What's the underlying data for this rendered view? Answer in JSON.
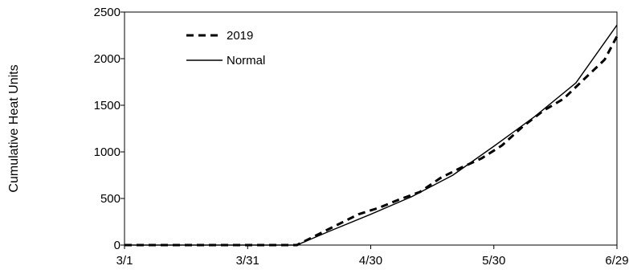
{
  "chart_data": {
    "type": "line",
    "title": "",
    "xlabel": "",
    "ylabel": "Cumulative Heat Units",
    "x_ticks": [
      "3/1",
      "3/31",
      "4/30",
      "5/30",
      "6/29"
    ],
    "xlim": [
      "3/1",
      "6/29"
    ],
    "ylim": [
      0,
      2500
    ],
    "y_ticks": [
      0,
      500,
      1000,
      1500,
      2000,
      2500
    ],
    "grid": false,
    "legend_position": "top-left",
    "series": [
      {
        "name": "2019",
        "style": "dashed",
        "color": "#000000",
        "x": [
          "3/1",
          "3/11",
          "3/21",
          "3/31",
          "4/10",
          "4/12",
          "4/17",
          "4/22",
          "4/27",
          "5/2",
          "5/7",
          "5/12",
          "5/17",
          "5/22",
          "5/27",
          "6/1",
          "6/6",
          "6/11",
          "6/16",
          "6/21",
          "6/26",
          "6/29"
        ],
        "y": [
          0,
          0,
          0,
          0,
          0,
          0,
          110,
          220,
          330,
          400,
          490,
          570,
          720,
          830,
          930,
          1070,
          1270,
          1440,
          1570,
          1780,
          1990,
          2240
        ]
      },
      {
        "name": "Normal",
        "style": "solid",
        "color": "#000000",
        "x": [
          "3/1",
          "3/11",
          "3/21",
          "3/31",
          "4/10",
          "4/12",
          "4/20",
          "4/30",
          "5/10",
          "5/20",
          "5/30",
          "6/9",
          "6/19",
          "6/29"
        ],
        "y": [
          0,
          0,
          0,
          0,
          0,
          0,
          150,
          330,
          520,
          750,
          1060,
          1380,
          1740,
          2360
        ]
      }
    ]
  }
}
